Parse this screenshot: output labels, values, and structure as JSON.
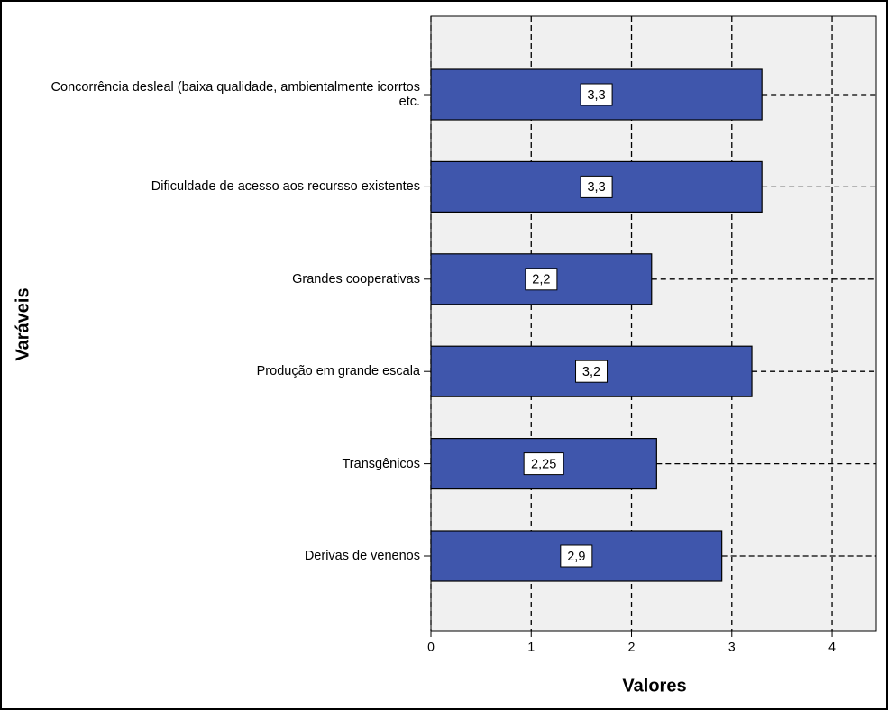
{
  "chart_data": {
    "type": "hbar",
    "x_label": "Valores",
    "y_label": "Varáveis",
    "categories": [
      "Concorrência desleal (baixa qualidade, ambientalmente icorrtos etc.",
      "Dificuldade de acesso aos recursso existentes",
      "Grandes cooperativas",
      "Produção em grande escala",
      "Transgênicos",
      "Derivas de venenos"
    ],
    "values": [
      3.3,
      3.3,
      2.2,
      3.2,
      2.25,
      2.9
    ],
    "value_labels": [
      "3,3",
      "3,3",
      "2,2",
      "3,2",
      "2,25",
      "2,9"
    ],
    "color": "#3f56ac",
    "xlim": [
      0,
      4.44
    ],
    "xticks": [
      0,
      1,
      2,
      3,
      4
    ],
    "grid": true
  }
}
